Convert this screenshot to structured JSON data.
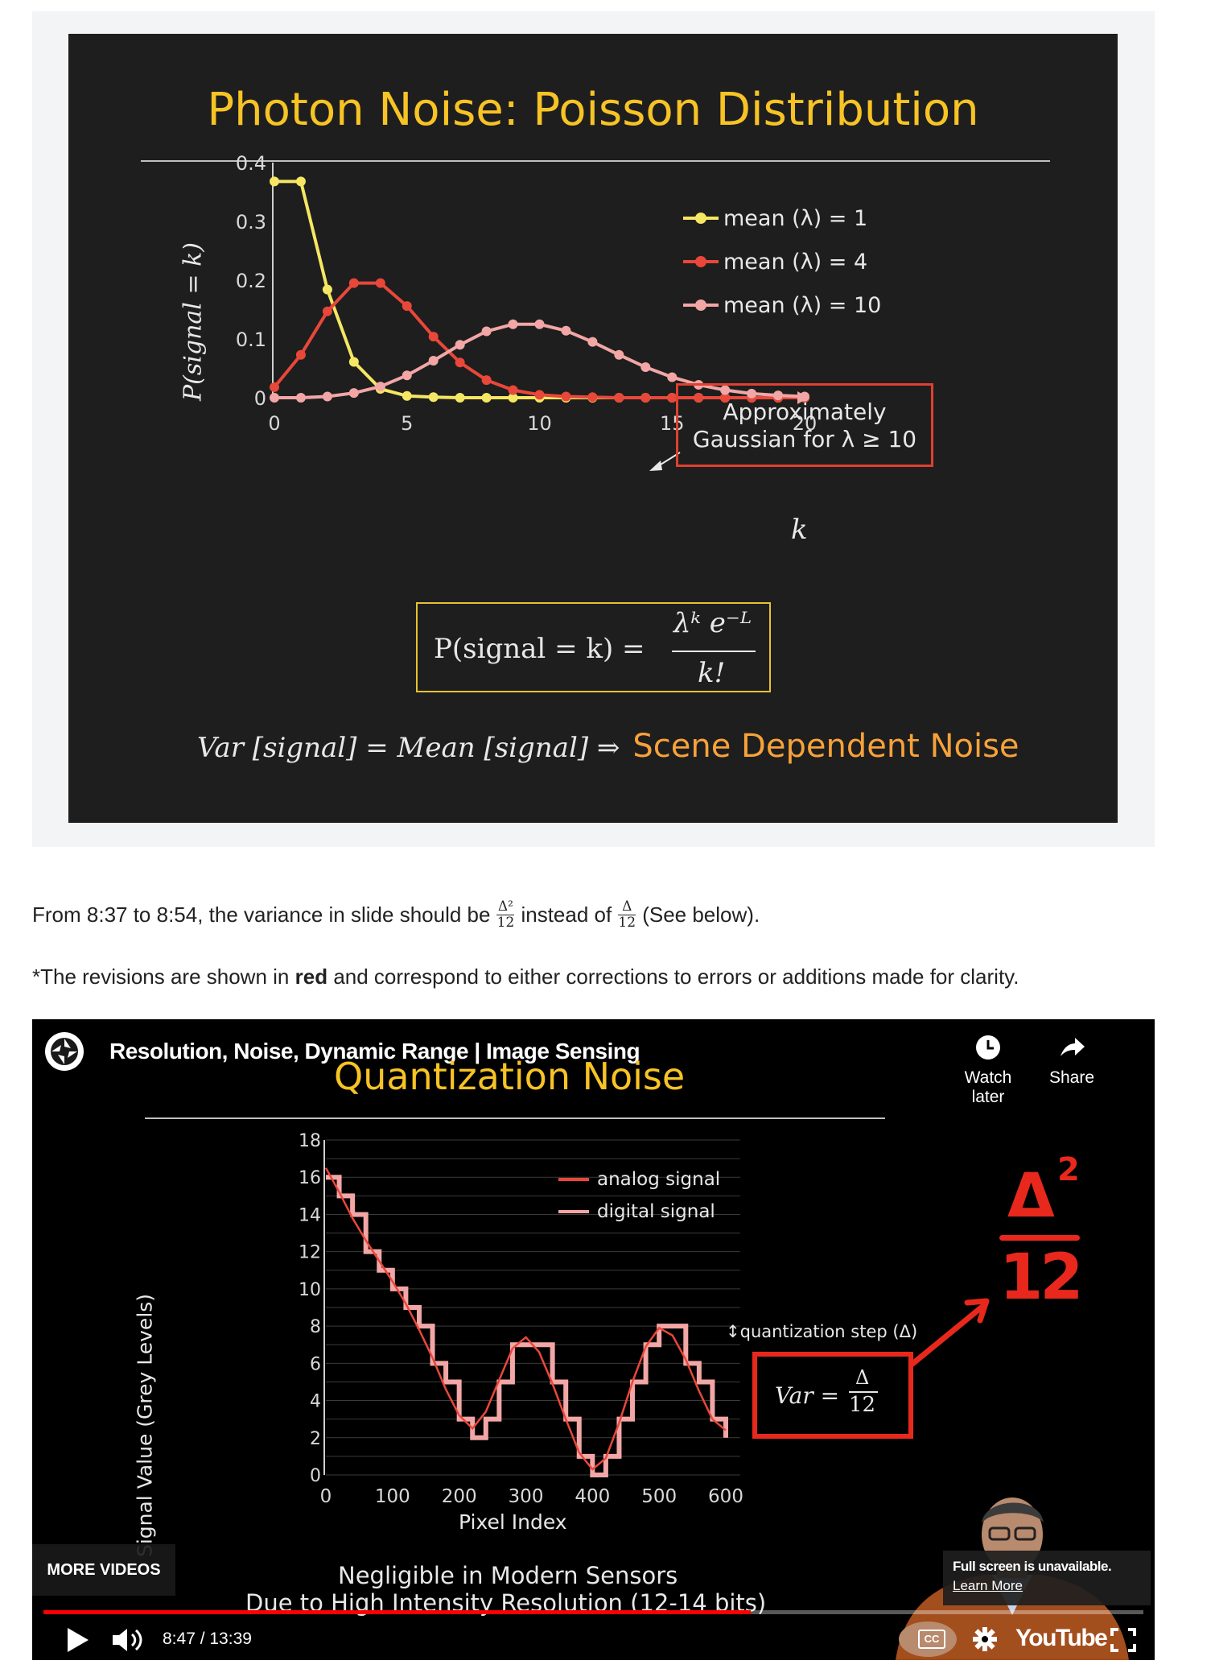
{
  "slide1": {
    "title": "Photon Noise: Poisson Distribution",
    "ylabel": "P(signal = k)",
    "xlabel": "k",
    "callout": [
      "Approximately",
      "Gaussian for λ ≥ 10"
    ],
    "formula": {
      "lhs": "P(signal = k) =",
      "numerator": "λᵏ e⁻ᴸ",
      "denominator": "k!"
    },
    "bottom": {
      "math": "Var [signal] = Mean [signal] ⇒",
      "highlight": "Scene Dependent Noise"
    },
    "colors": {
      "title": "#f7c325",
      "highlight": "#f7a23a",
      "s1": "#f5e663",
      "s2": "#e8473a",
      "s3": "#f3a6a6"
    }
  },
  "chart_data": [
    {
      "type": "line",
      "title": "",
      "xlabel": "k",
      "ylabel": "P(signal = k)",
      "xlim": [
        0,
        20
      ],
      "ylim": [
        0,
        0.4
      ],
      "xticks": [
        "0",
        "5",
        "10",
        "15",
        "20"
      ],
      "yticks": [
        "0",
        "0.1",
        "0.2",
        "0.3",
        "0.4"
      ],
      "legend_position": "top-right",
      "series": [
        {
          "name": "mean (λ) = 1",
          "color": "#f5e663",
          "x": [
            0,
            1,
            2,
            3,
            4,
            5,
            6,
            7,
            8,
            9,
            10,
            11,
            12,
            13,
            14,
            15,
            16,
            17,
            18,
            19,
            20
          ],
          "values": [
            0.368,
            0.368,
            0.184,
            0.061,
            0.015,
            0.003,
            0.001,
            0,
            0,
            0,
            0,
            0,
            0,
            0,
            0,
            0,
            0,
            0,
            0,
            0,
            0
          ]
        },
        {
          "name": "mean (λ) = 4",
          "color": "#e8473a",
          "x": [
            0,
            1,
            2,
            3,
            4,
            5,
            6,
            7,
            8,
            9,
            10,
            11,
            12,
            13,
            14,
            15,
            16,
            17,
            18,
            19,
            20
          ],
          "values": [
            0.018,
            0.073,
            0.147,
            0.195,
            0.195,
            0.156,
            0.104,
            0.06,
            0.03,
            0.013,
            0.005,
            0.002,
            0.001,
            0,
            0,
            0,
            0,
            0,
            0,
            0,
            0
          ]
        },
        {
          "name": "mean (λ) = 10",
          "color": "#f3a6a6",
          "x": [
            0,
            1,
            2,
            3,
            4,
            5,
            6,
            7,
            8,
            9,
            10,
            11,
            12,
            13,
            14,
            15,
            16,
            17,
            18,
            19,
            20
          ],
          "values": [
            0,
            0,
            0.002,
            0.008,
            0.019,
            0.038,
            0.063,
            0.09,
            0.113,
            0.125,
            0.125,
            0.114,
            0.095,
            0.073,
            0.052,
            0.035,
            0.022,
            0.013,
            0.007,
            0.004,
            0.002
          ]
        }
      ]
    },
    {
      "type": "line",
      "title": "",
      "xlabel": "Pixel Index",
      "ylabel": "Signal Value (Grey Levels)",
      "xlim": [
        0,
        600
      ],
      "ylim": [
        0,
        18
      ],
      "xticks": [
        "0",
        "100",
        "200",
        "300",
        "400",
        "500",
        "600"
      ],
      "yticks": [
        "0",
        "2",
        "4",
        "6",
        "8",
        "10",
        "12",
        "14",
        "16",
        "18"
      ],
      "legend_position": "top-right",
      "series": [
        {
          "name": "analog signal",
          "color": "#e8473a",
          "x": [
            0,
            20,
            40,
            60,
            80,
            100,
            120,
            140,
            160,
            180,
            200,
            220,
            240,
            260,
            280,
            300,
            320,
            340,
            360,
            380,
            400,
            420,
            440,
            460,
            480,
            500,
            520,
            540,
            560,
            580,
            600
          ],
          "values": [
            16.5,
            15.2,
            13.8,
            12.6,
            11.5,
            10.4,
            9.2,
            7.8,
            6.3,
            4.6,
            3.2,
            2.5,
            3.4,
            5.1,
            6.8,
            7.4,
            6.6,
            4.9,
            3.0,
            1.2,
            0.3,
            0.9,
            2.8,
            5.0,
            6.9,
            7.9,
            7.5,
            6.2,
            4.5,
            3.0,
            2.4
          ]
        },
        {
          "name": "digital signal",
          "color": "#f3a6a6",
          "x": [
            0,
            20,
            40,
            60,
            80,
            100,
            120,
            140,
            160,
            180,
            200,
            220,
            240,
            260,
            280,
            300,
            320,
            340,
            360,
            380,
            400,
            420,
            440,
            460,
            480,
            500,
            520,
            540,
            560,
            580,
            600
          ],
          "values": [
            16,
            15,
            14,
            12,
            11,
            10,
            9,
            8,
            6,
            5,
            3,
            2,
            3,
            5,
            7,
            7,
            7,
            5,
            3,
            1,
            0,
            1,
            3,
            5,
            7,
            8,
            8,
            6,
            5,
            3,
            2
          ]
        }
      ],
      "annotation": "quantization step (Δ)"
    }
  ],
  "text": {
    "line1_pre": "From 8:37 to 8:54, the variance in slide should be",
    "frac1_num": "Δ²",
    "frac1_den": "12",
    "line1_mid": "instead of",
    "frac2_num": "Δ",
    "frac2_den": "12",
    "line1_post": "(See below).",
    "line2_pre": "*The revisions are shown in",
    "line2_bold": "red",
    "line2_post": "and correspond to either corrections to errors or additions made for clarity."
  },
  "video": {
    "channel_title": "Resolution, Noise, Dynamic Range | Image Sensing",
    "slide_title": "Quantization Noise",
    "watch_later": "Watch later",
    "share": "Share",
    "var_lhs": "Var =",
    "var_num": "Δ",
    "var_den": "12",
    "handwritten": {
      "num": "Δ",
      "exp": "2",
      "den": "12"
    },
    "footer_line1": "Negligible in Modern Sensors",
    "footer_line2": "Due to High Intensity Resolution (12-14 bits)",
    "more_videos": "MORE VIDEOS",
    "fullscreen_msg": "Full screen is unavailable.",
    "learn_more": "Learn More",
    "time": "8:47 / 13:39",
    "progress": 0.643,
    "cc": "CC",
    "youtube": "YouTube"
  }
}
